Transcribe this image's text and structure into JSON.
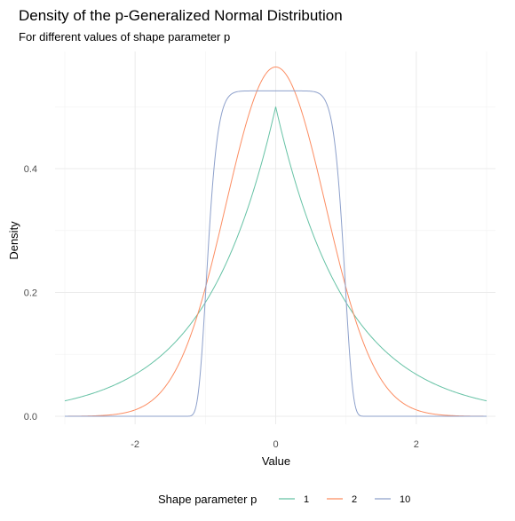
{
  "chart_data": {
    "type": "line",
    "title": "Density of the p-Generalized Normal Distribution",
    "subtitle": "For different values of shape parameter p",
    "xlabel": "Value",
    "ylabel": "Density",
    "xlim": [
      -3,
      3
    ],
    "ylim": [
      0,
      0.5642
    ],
    "x_ticks": [
      -2,
      0,
      2
    ],
    "x_tick_labels": [
      "-2",
      "0",
      "2"
    ],
    "y_ticks": [
      0.0,
      0.2,
      0.4
    ],
    "y_tick_labels": [
      "0.0",
      "0.2",
      "0.4"
    ],
    "grid": true,
    "legend": {
      "title": "Shape parameter p",
      "position": "bottom"
    },
    "x": [
      -3.0,
      -2.5,
      -2.0,
      -1.5,
      -1.25,
      -1.0,
      -0.75,
      -0.5,
      -0.25,
      0.0,
      0.25,
      0.5,
      0.75,
      1.0,
      1.25,
      1.5,
      2.0,
      2.5,
      3.0
    ],
    "series": [
      {
        "name": "1",
        "color": "#66c2a5",
        "values": [
          0.025,
          0.041,
          0.068,
          0.112,
          0.143,
          0.184,
          0.236,
          0.303,
          0.389,
          0.5,
          0.389,
          0.303,
          0.236,
          0.184,
          0.143,
          0.112,
          0.068,
          0.041,
          0.025
        ]
      },
      {
        "name": "2",
        "color": "#fc8d62",
        "values": [
          0.0,
          0.001,
          0.01,
          0.059,
          0.118,
          0.208,
          0.321,
          0.439,
          0.53,
          0.564,
          0.53,
          0.439,
          0.321,
          0.208,
          0.118,
          0.059,
          0.01,
          0.001,
          0.0
        ]
      },
      {
        "name": "10",
        "color": "#8da0cb",
        "values": [
          0.0,
          0.0,
          0.0,
          0.0,
          0.002,
          0.194,
          0.518,
          0.525,
          0.525,
          0.525,
          0.525,
          0.525,
          0.518,
          0.194,
          0.002,
          0.0,
          0.0,
          0.0,
          0.0
        ]
      }
    ]
  }
}
